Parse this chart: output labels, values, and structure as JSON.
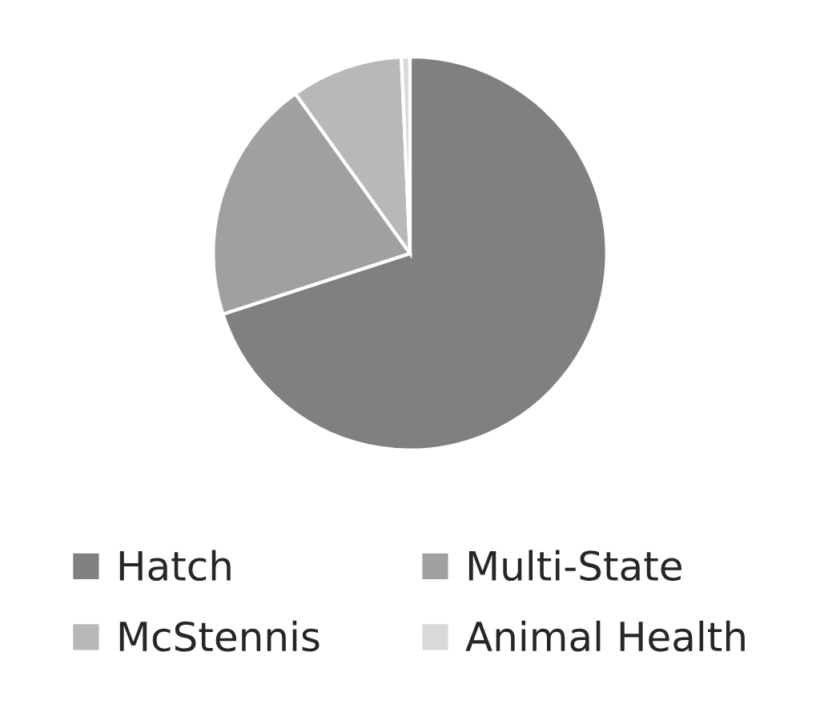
{
  "chart_data": {
    "type": "pie",
    "categories": [
      "Hatch",
      "Multi-State",
      "McStennis",
      "Animal Health"
    ],
    "values": [
      70.0,
      20.1,
      9.2,
      0.7
    ],
    "colors": [
      "#808080",
      "#a0a0a0",
      "#b8b8b8",
      "#d9d9d9"
    ],
    "legend": "bottom"
  }
}
